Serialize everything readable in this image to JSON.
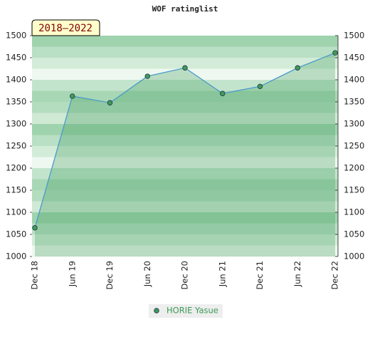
{
  "chart_data": {
    "type": "line",
    "title": "WOF ratinglist",
    "period_label": "2018–2022",
    "categories": [
      "Dec 18",
      "Jun 19",
      "Dec 19",
      "Jun 20",
      "Dec 20",
      "Jun 21",
      "Dec 21",
      "Jun 22",
      "Dec 22"
    ],
    "series": [
      {
        "name": "HORIE Yasue",
        "color": "#4a9acb",
        "marker_color": "#3f9a5a",
        "area_color": "#3e9a5e",
        "values": [
          1065,
          1363,
          1348,
          1408,
          1427,
          1369,
          1385,
          1427,
          1461
        ]
      }
    ],
    "ylim": [
      1000,
      1500
    ],
    "yticks": [
      1000,
      1050,
      1100,
      1150,
      1200,
      1250,
      1300,
      1350,
      1400,
      1450,
      1500
    ],
    "y2lim": [
      1000,
      1500
    ],
    "y2ticks": [
      1000,
      1050,
      1100,
      1150,
      1200,
      1250,
      1300,
      1350,
      1400,
      1450,
      1500
    ],
    "legend": "bottom"
  }
}
